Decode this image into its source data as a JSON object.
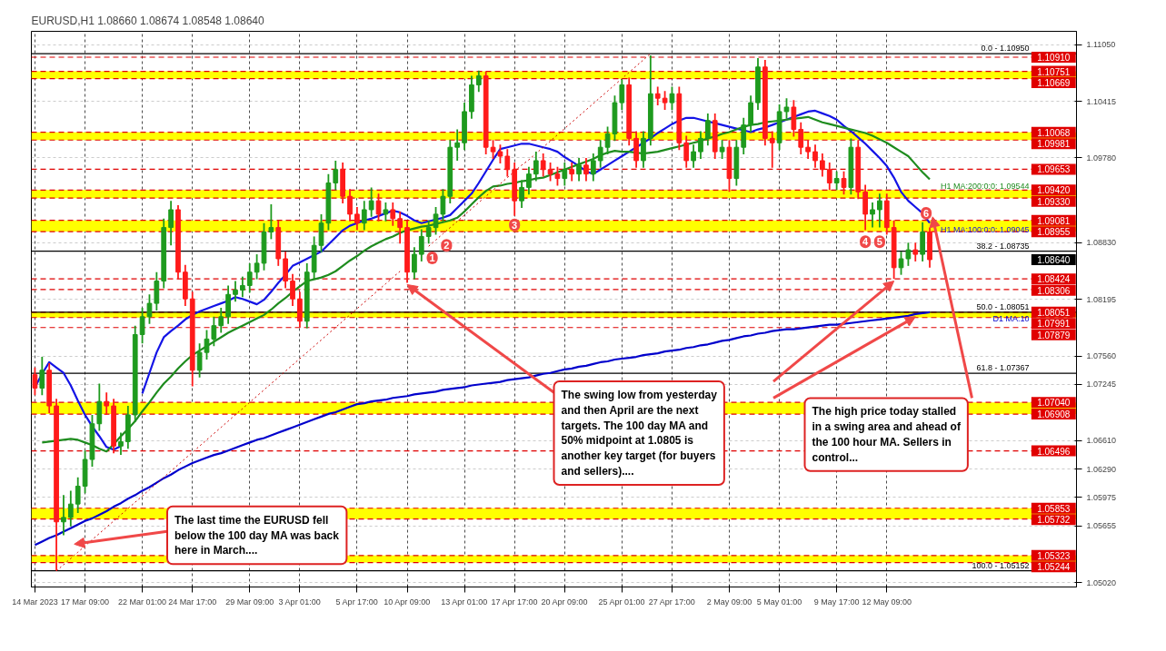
{
  "chart_data": {
    "type": "candlestick",
    "title": "EURUSD,H1  1.08660 1.08674 1.08548 1.08640",
    "categories": [
      "14 Mar 2023",
      null,
      null,
      null,
      null,
      null,
      null,
      "17 Mar 09:00",
      null,
      null,
      null,
      null,
      null,
      null,
      null,
      "22 Mar 01:00",
      null,
      null,
      null,
      null,
      null,
      null,
      "24 Mar 17:00",
      null,
      null,
      null,
      null,
      null,
      null,
      null,
      "29 Mar 09:00",
      null,
      null,
      null,
      null,
      null,
      null,
      "3 Apr 01:00",
      null,
      null,
      null,
      null,
      null,
      null,
      null,
      "5 Apr 17:00",
      null,
      null,
      null,
      null,
      null,
      null,
      "10 Apr 09:00",
      null,
      null,
      null,
      null,
      null,
      null,
      null,
      "13 Apr 01:00",
      null,
      null,
      null,
      null,
      null,
      null,
      "17 Apr 17:00",
      null,
      null,
      null,
      null,
      null,
      null,
      "20 Apr 09:00",
      null,
      null,
      null,
      null,
      null,
      null,
      null,
      "25 Apr 01:00",
      null,
      null,
      null,
      null,
      null,
      null,
      "27 Apr 17:00",
      null,
      null,
      null,
      null,
      null,
      null,
      null,
      "2 May 09:00",
      null,
      null,
      null,
      null,
      null,
      null,
      "5 May 01:00",
      null,
      null,
      null,
      null,
      null,
      null,
      null,
      "9 May 17:00",
      null,
      null,
      null,
      null,
      null,
      null,
      "12 May 09:00",
      null,
      null,
      null,
      null,
      null,
      null
    ],
    "ohlc": [
      [
        1.0735,
        1.0743,
        1.0712,
        1.072
      ],
      [
        1.072,
        1.0755,
        1.0712,
        1.074
      ],
      [
        1.074,
        1.0748,
        1.0692,
        1.07
      ],
      [
        1.07,
        1.0708,
        1.05152,
        1.057
      ],
      [
        1.057,
        1.06,
        1.0555,
        1.0575
      ],
      [
        1.0575,
        1.0605,
        1.0565,
        1.059
      ],
      [
        1.059,
        1.062,
        1.058,
        1.061
      ],
      [
        1.061,
        1.065,
        1.0602,
        1.064
      ],
      [
        1.064,
        1.069,
        1.0632,
        1.068
      ],
      [
        1.068,
        1.0725,
        1.0672,
        1.0705
      ],
      [
        1.0705,
        1.0715,
        1.069,
        1.07
      ],
      [
        1.07,
        1.0708,
        1.0647,
        1.0655
      ],
      [
        1.0655,
        1.067,
        1.0645,
        1.066
      ],
      [
        1.066,
        1.07,
        1.0652,
        1.069
      ],
      [
        1.069,
        1.079,
        1.0682,
        1.078
      ],
      [
        1.078,
        1.081,
        1.077,
        1.08
      ],
      [
        1.08,
        1.0825,
        1.0792,
        1.0815
      ],
      [
        1.0815,
        1.085,
        1.0807,
        1.084
      ],
      [
        1.084,
        1.091,
        1.0832,
        1.09
      ],
      [
        1.09,
        1.093,
        1.088,
        1.092
      ],
      [
        1.092,
        1.0925,
        1.0842,
        1.085
      ],
      [
        1.085,
        1.0858,
        1.0812,
        1.082
      ],
      [
        1.082,
        1.0828,
        1.0722,
        1.074
      ],
      [
        1.074,
        1.077,
        1.0732,
        1.076
      ],
      [
        1.076,
        1.0785,
        1.0752,
        1.0775
      ],
      [
        1.0775,
        1.08,
        1.0767,
        1.079
      ],
      [
        1.079,
        1.081,
        1.0782,
        1.08
      ],
      [
        1.08,
        1.0835,
        1.0792,
        1.0825
      ],
      [
        1.0825,
        1.084,
        1.0817,
        1.083
      ],
      [
        1.083,
        1.0845,
        1.0822,
        1.0835
      ],
      [
        1.0835,
        1.086,
        1.0827,
        1.085
      ],
      [
        1.085,
        1.087,
        1.0842,
        1.086
      ],
      [
        1.086,
        1.0905,
        1.0852,
        1.0895
      ],
      [
        1.0895,
        1.0926,
        1.0887,
        1.09
      ],
      [
        1.09,
        1.0908,
        1.0857,
        1.0865
      ],
      [
        1.0865,
        1.0873,
        1.0832,
        1.084
      ],
      [
        1.084,
        1.0848,
        1.0812,
        1.082
      ],
      [
        1.082,
        1.0828,
        1.0788,
        1.0795
      ],
      [
        1.0795,
        1.086,
        1.0787,
        1.085
      ],
      [
        1.085,
        1.089,
        1.0842,
        1.088
      ],
      [
        1.088,
        1.0915,
        1.0872,
        1.0905
      ],
      [
        1.0905,
        1.096,
        1.0897,
        1.095
      ],
      [
        1.095,
        1.0975,
        1.0942,
        1.0965
      ],
      [
        1.0965,
        1.0973,
        1.0927,
        1.0935
      ],
      [
        1.0935,
        1.0943,
        1.0907,
        1.0915
      ],
      [
        1.0915,
        1.0923,
        1.0897,
        1.0905
      ],
      [
        1.0905,
        1.093,
        1.0897,
        1.092
      ],
      [
        1.092,
        1.0945,
        1.0912,
        1.093
      ],
      [
        1.093,
        1.0938,
        1.0907,
        1.0915
      ],
      [
        1.0915,
        1.0928,
        1.0907,
        1.092
      ],
      [
        1.092,
        1.0928,
        1.0902,
        1.091
      ],
      [
        1.091,
        1.0918,
        1.0882,
        1.09
      ],
      [
        1.09,
        1.0908,
        1.0838,
        1.085
      ],
      [
        1.085,
        1.0878,
        1.0842,
        1.087
      ],
      [
        1.087,
        1.0898,
        1.0862,
        1.089
      ],
      [
        1.089,
        1.0908,
        1.0882,
        1.09
      ],
      [
        1.09,
        1.0923,
        1.0892,
        1.0915
      ],
      [
        1.0915,
        1.0943,
        1.0907,
        1.0935
      ],
      [
        1.0935,
        1.0998,
        1.0927,
        1.099
      ],
      [
        1.099,
        1.101,
        1.0975,
        1.0995
      ],
      [
        1.0995,
        1.104,
        1.0987,
        1.103
      ],
      [
        1.103,
        1.107,
        1.1022,
        1.106
      ],
      [
        1.106,
        1.1076,
        1.1052,
        1.107
      ],
      [
        1.107,
        1.1075,
        1.0982,
        1.099
      ],
      [
        1.099,
        1.0998,
        1.0977,
        1.0985
      ],
      [
        1.0985,
        1.0993,
        1.0972,
        1.098
      ],
      [
        1.098,
        1.0988,
        1.0957,
        1.0965
      ],
      [
        1.0965,
        1.0973,
        1.0913,
        1.093
      ],
      [
        1.093,
        1.0953,
        1.0922,
        1.0945
      ],
      [
        1.0945,
        1.0968,
        1.0937,
        1.096
      ],
      [
        1.096,
        1.0985,
        1.0952,
        1.0975
      ],
      [
        1.0975,
        1.0983,
        1.0957,
        1.0965
      ],
      [
        1.0965,
        1.0973,
        1.0952,
        1.096
      ],
      [
        1.096,
        1.0968,
        1.0947,
        1.0955
      ],
      [
        1.0955,
        1.0973,
        1.0947,
        1.0965
      ],
      [
        1.0965,
        1.0973,
        1.0952,
        1.096
      ],
      [
        1.096,
        1.0978,
        1.0952,
        1.097
      ],
      [
        1.097,
        1.0978,
        1.0952,
        1.096
      ],
      [
        1.096,
        1.0983,
        1.0952,
        1.0975
      ],
      [
        1.0975,
        1.0998,
        1.0967,
        1.099
      ],
      [
        1.099,
        1.1013,
        1.0982,
        1.1005
      ],
      [
        1.1005,
        1.1048,
        1.0997,
        1.104
      ],
      [
        1.104,
        1.1066,
        1.1032,
        1.106
      ],
      [
        1.106,
        1.1068,
        1.0992,
        1.1
      ],
      [
        1.1,
        1.1008,
        1.0967,
        1.0975
      ],
      [
        1.0975,
        1.1008,
        1.0967,
        1.1
      ],
      [
        1.1,
        1.1093,
        1.0992,
        1.105
      ],
      [
        1.105,
        1.1058,
        1.1037,
        1.1045
      ],
      [
        1.1045,
        1.1053,
        1.1032,
        1.104
      ],
      [
        1.104,
        1.1058,
        1.1032,
        1.105
      ],
      [
        1.105,
        1.1058,
        1.0987,
        1.0995
      ],
      [
        1.0995,
        1.1003,
        1.0967,
        1.0975
      ],
      [
        1.0975,
        1.0993,
        1.0967,
        1.0985
      ],
      [
        1.0985,
        1.1008,
        1.0977,
        1.1
      ],
      [
        1.1,
        1.1028,
        1.0992,
        1.102
      ],
      [
        1.102,
        1.1028,
        1.0977,
        1.0985
      ],
      [
        1.0985,
        1.0998,
        1.0977,
        1.099
      ],
      [
        1.099,
        1.0998,
        1.094,
        1.0955
      ],
      [
        1.0955,
        1.0998,
        1.0947,
        1.099
      ],
      [
        1.099,
        1.1023,
        1.0982,
        1.1015
      ],
      [
        1.1015,
        1.1048,
        1.1007,
        1.104
      ],
      [
        1.104,
        1.109,
        1.1032,
        1.108
      ],
      [
        1.108,
        1.1088,
        1.0992,
        1.1
      ],
      [
        1.1,
        1.1008,
        1.0967,
        1.0995
      ],
      [
        1.0995,
        1.1038,
        1.0987,
        1.103
      ],
      [
        1.103,
        1.1045,
        1.1022,
        1.1035
      ],
      [
        1.1035,
        1.1043,
        1.1002,
        1.101
      ],
      [
        1.101,
        1.1018,
        1.0982,
        1.099
      ],
      [
        1.099,
        1.0998,
        1.0977,
        1.0985
      ],
      [
        1.0985,
        1.0993,
        1.0967,
        1.0975
      ],
      [
        1.0975,
        1.0983,
        1.0957,
        1.0965
      ],
      [
        1.0965,
        1.0973,
        1.0942,
        1.095
      ],
      [
        1.095,
        1.0963,
        1.0942,
        1.0955
      ],
      [
        1.0955,
        1.0963,
        1.0937,
        1.0945
      ],
      [
        1.0945,
        1.1,
        1.0937,
        1.099
      ],
      [
        1.099,
        1.0998,
        1.0932,
        1.094
      ],
      [
        1.094,
        1.0948,
        1.0897,
        1.0915
      ],
      [
        1.0915,
        1.0928,
        1.09,
        1.092
      ],
      [
        1.092,
        1.0938,
        1.09,
        1.093
      ],
      [
        1.093,
        1.0938,
        1.0892,
        1.09
      ],
      [
        1.09,
        1.0908,
        1.08424,
        1.0855
      ],
      [
        1.0855,
        1.0873,
        1.0847,
        1.0865
      ],
      [
        1.0865,
        1.0883,
        1.0857,
        1.0875
      ],
      [
        1.0875,
        1.0883,
        1.0862,
        1.087
      ],
      [
        1.087,
        1.0906,
        1.0862,
        1.0895
      ],
      [
        1.0895,
        1.09,
        1.0855,
        1.0864
      ]
    ],
    "series": [
      {
        "type": "line",
        "name": "H1 MA:100:0:0: 1.09045",
        "color": "#1414e6",
        "values": [
          1.0721,
          1.0736,
          1.0749,
          1.0743,
          1.0737,
          1.0723,
          1.0706,
          1.069,
          1.0677,
          1.0666,
          1.0654,
          1.0651,
          1.0655,
          null,
          null,
          1.0714,
          1.0737,
          1.076,
          1.0777,
          1.0784,
          1.079,
          1.0797,
          1.0802,
          1.0806,
          1.0809,
          1.0812,
          1.0815,
          1.0818,
          1.0822,
          1.082,
          1.0817,
          1.0814,
          1.0819,
          1.0828,
          1.0838,
          1.0847,
          1.0857,
          1.0861,
          1.0865,
          1.0869,
          1.0873,
          1.0881,
          1.0889,
          1.0897,
          1.0902,
          1.0905,
          1.0908,
          1.091,
          1.0913,
          1.0916,
          1.0919,
          1.0917,
          1.0913,
          1.0908,
          1.0905,
          1.0907,
          1.0909,
          1.0911,
          1.0914,
          1.0922,
          1.093,
          1.0938,
          1.095,
          1.0963,
          1.0976,
          1.0988,
          1.099,
          1.0992,
          1.0994,
          1.0994,
          1.0992,
          1.099,
          1.0988,
          1.0985,
          1.0979,
          1.0974,
          1.0969,
          1.0963,
          1.096,
          1.0965,
          1.097,
          1.0975,
          1.098,
          1.0985,
          1.099,
          1.0995,
          1.1,
          1.1006,
          1.1011,
          1.1016,
          1.102,
          1.1023,
          1.1023,
          1.1021,
          1.1019,
          1.1017,
          1.1015,
          1.1013,
          1.1011,
          1.1009,
          1.1007,
          1.101,
          1.1012,
          1.1015,
          1.1018,
          1.1021,
          1.1024,
          1.1027,
          1.103,
          1.1031,
          1.1028,
          1.1025,
          1.1021,
          1.1014,
          1.1008,
          1.1001,
          1.0994,
          1.0986,
          1.0978,
          1.0969,
          1.0956,
          1.094,
          1.093,
          1.0923,
          1.0916,
          1.0905
        ]
      },
      {
        "type": "line",
        "name": "H1 MA:200:0:0: 1.09544",
        "color": "#1e8c1e",
        "values": [
          null,
          1.0659,
          1.066,
          1.0661,
          1.0662,
          1.0663,
          1.0662,
          1.0659,
          1.0656,
          1.0652,
          1.0649,
          1.0657,
          1.0666,
          1.0674,
          1.0683,
          1.0694,
          1.0704,
          1.0715,
          1.0725,
          1.0733,
          1.0742,
          1.075,
          1.0757,
          1.0762,
          1.0767,
          1.0772,
          1.0777,
          1.0782,
          1.0786,
          1.079,
          1.0794,
          1.0798,
          1.0802,
          1.0808,
          1.0815,
          1.0821,
          1.0828,
          1.0834,
          1.084,
          1.0842,
          1.0844,
          1.0847,
          1.0851,
          1.0857,
          1.0863,
          1.0868,
          1.0874,
          1.0879,
          1.0883,
          1.0887,
          1.089,
          1.0894,
          1.0897,
          1.0899,
          1.0901,
          1.0902,
          1.0904,
          1.0906,
          1.0908,
          1.0911,
          1.0918,
          1.0926,
          1.0934,
          1.0941,
          1.0946,
          1.0947,
          1.0949,
          1.095,
          1.0952,
          1.0953,
          1.0955,
          1.0956,
          1.0959,
          1.0962,
          1.0965,
          1.0968,
          1.0971,
          1.0974,
          1.0977,
          1.0981,
          1.0984,
          1.0986,
          1.0985,
          1.0985,
          1.0984,
          1.0983,
          1.0984,
          1.0985,
          1.0987,
          1.0989,
          1.0991,
          1.0993,
          1.0995,
          1.0997,
          1.1,
          1.1002,
          1.1005,
          1.1007,
          1.101,
          1.1013,
          1.1015,
          1.1016,
          1.1018,
          1.1019,
          1.102,
          1.1021,
          1.1022,
          1.1023,
          1.1024,
          1.1021,
          1.1018,
          1.1016,
          1.1014,
          1.1012,
          1.101,
          1.1008,
          1.1006,
          1.1003,
          1.0999,
          1.0995,
          1.099,
          1.0985,
          1.098,
          1.0971,
          1.0962,
          1.0954
        ]
      },
      {
        "type": "line",
        "name": "D1 MA:10",
        "color": "#0000cc",
        "values": [
          1.0544,
          1.0548,
          1.0552,
          1.0555,
          1.0559,
          1.0563,
          1.0567,
          1.0571,
          1.0574,
          1.0578,
          1.0582,
          1.0587,
          1.0591,
          1.0596,
          1.06,
          1.0605,
          1.0609,
          1.0614,
          1.0619,
          1.0623,
          1.0628,
          1.0632,
          1.0636,
          1.0639,
          1.0642,
          1.0645,
          1.0647,
          1.065,
          1.0653,
          1.0656,
          1.0659,
          1.0662,
          1.0664,
          1.0667,
          1.067,
          1.0673,
          1.0676,
          1.0679,
          1.0682,
          1.0685,
          1.0688,
          1.0691,
          1.0693,
          1.0696,
          1.0699,
          1.0702,
          1.0703,
          1.0705,
          1.0706,
          1.0707,
          1.0709,
          1.071,
          1.0711,
          1.0713,
          1.0714,
          1.0715,
          1.0716,
          1.0718,
          1.0719,
          1.072,
          1.0721,
          1.0723,
          1.0724,
          1.0725,
          1.0726,
          1.0727,
          1.0729,
          1.073,
          1.0731,
          1.0732,
          1.0734,
          1.0736,
          1.0737,
          1.0739,
          1.0741,
          1.0742,
          1.0744,
          1.0745,
          1.0747,
          1.0749,
          1.075,
          1.0752,
          1.0753,
          1.0754,
          1.0755,
          1.0757,
          1.0758,
          1.0759,
          1.0761,
          1.0762,
          1.0763,
          1.0765,
          1.0766,
          1.0768,
          1.0769,
          1.0771,
          1.0773,
          1.0774,
          1.0776,
          1.0778,
          1.0779,
          1.0781,
          1.0782,
          1.0784,
          1.0785,
          1.0786,
          1.0786,
          1.0787,
          1.0788,
          1.0789,
          1.079,
          1.0791,
          1.0791,
          1.0792,
          1.0793,
          1.0794,
          1.0795,
          1.0796,
          1.0797,
          1.0798,
          1.0799,
          1.08,
          1.0801,
          1.0803,
          1.0804,
          1.0805
        ]
      },
      {
        "type": "line",
        "color": "#cc0000",
        "line_style": "dotted",
        "values": [
          null,
          null,
          null,
          1.0515,
          1.0522,
          1.0529,
          1.0536,
          1.0543,
          1.055,
          1.0557,
          1.0564,
          1.0571,
          1.0578,
          1.0585,
          1.0592,
          1.0599,
          1.0606,
          1.0613,
          1.062,
          1.0627,
          1.0634,
          1.0641,
          1.0648,
          1.0655,
          1.0662,
          1.0669,
          1.0676,
          1.0683,
          1.069,
          1.0697,
          1.0704,
          1.0711,
          1.0718,
          1.0725,
          1.0732,
          1.0739,
          1.0746,
          1.0753,
          1.076,
          1.0767,
          1.0774,
          1.0781,
          1.0788,
          1.0795,
          1.0802,
          1.0809,
          1.0816,
          1.0823,
          1.083,
          1.0837,
          1.0844,
          1.0851,
          null,
          null,
          null,
          1.0879,
          1.0886,
          1.0893,
          1.09,
          1.0907,
          1.0914,
          1.0921,
          1.0928,
          1.0935,
          1.0942,
          1.0949,
          1.0956,
          1.0963,
          1.097,
          1.0976,
          1.0983,
          1.099,
          1.0997,
          1.1004,
          1.1011,
          1.1018,
          1.1025,
          1.1032,
          1.1039,
          1.1046,
          1.1053,
          1.106,
          1.1067,
          1.1074,
          1.1081,
          1.1088,
          1.1095,
          null,
          null,
          null,
          null,
          null,
          null,
          null,
          null,
          null,
          null,
          null,
          null,
          null,
          null,
          null,
          null,
          null,
          null,
          null,
          null,
          null,
          null,
          null,
          null,
          null,
          null,
          null,
          null,
          null,
          null,
          null,
          null,
          null,
          null,
          null,
          null,
          null,
          null,
          null
        ]
      }
    ],
    "ylim": [
      1.0497,
      1.112
    ],
    "yticks": [
      {
        "value": 1.1105,
        "label": "1.11050"
      },
      {
        "value": 1.10415,
        "label": "1.10415"
      },
      {
        "value": 1.0978,
        "label": "1.09780"
      },
      {
        "value": 1.0883,
        "label": "1.08830"
      },
      {
        "value": 1.08195,
        "label": "1.08195"
      },
      {
        "value": 1.0756,
        "label": "1.07560"
      },
      {
        "value": 1.07245,
        "label": "1.07245"
      },
      {
        "value": 1.0661,
        "label": "1.06610"
      },
      {
        "value": 1.0629,
        "label": "1.06290"
      },
      {
        "value": 1.05975,
        "label": "1.05975"
      },
      {
        "value": 1.05655,
        "label": "1.05655"
      },
      {
        "value": 1.0502,
        "label": "1.05020"
      }
    ],
    "grid": true,
    "ref_lines": [
      {
        "axis": "y",
        "value": 1.1091,
        "label": "1.10910",
        "color": "#e00000",
        "line_style": "dashed"
      },
      {
        "axis": "y",
        "value": 1.10751,
        "label": "1.10751",
        "color": "#e00000",
        "line_style": "dashed"
      },
      {
        "axis": "y",
        "value": 1.10669,
        "label": "1.10669",
        "color": "#e00000",
        "line_style": "dashed"
      },
      {
        "axis": "y",
        "value": 1.10068,
        "label": "1.10068",
        "color": "#e00000",
        "line_style": "dashed"
      },
      {
        "axis": "y",
        "value": 1.09981,
        "label": "1.09981",
        "color": "#e00000",
        "line_style": "dashed"
      },
      {
        "axis": "y",
        "value": 1.09653,
        "label": "1.09653",
        "color": "#e00000",
        "line_style": "dashed"
      },
      {
        "axis": "y",
        "value": 1.0942,
        "label": "1.09420",
        "color": "#e00000",
        "line_style": "dashed"
      },
      {
        "axis": "y",
        "value": 1.0933,
        "label": "1.09330",
        "color": "#e00000",
        "line_style": "dashed"
      },
      {
        "axis": "y",
        "value": 1.09081,
        "label": "1.09081",
        "color": "#e00000",
        "line_style": "dashed"
      },
      {
        "axis": "y",
        "value": 1.08955,
        "label": "1.08955",
        "color": "#e00000",
        "line_style": "dashed"
      },
      {
        "axis": "y",
        "value": 1.08424,
        "label": "1.08424",
        "color": "#e00000",
        "line_style": "dashed"
      },
      {
        "axis": "y",
        "value": 1.08306,
        "label": "1.08306",
        "color": "#e00000",
        "line_style": "dashed"
      },
      {
        "axis": "y",
        "value": 1.08051,
        "label": "1.08051",
        "color": "#e00000",
        "line_style": "dashed"
      },
      {
        "axis": "y",
        "value": 1.07991,
        "label": "1.07991",
        "color": "#e00000",
        "line_style": "dashed"
      },
      {
        "axis": "y",
        "value": 1.07879,
        "label": "1.07879",
        "color": "#e00000",
        "line_style": "dashed"
      },
      {
        "axis": "y",
        "value": 1.0704,
        "label": "1.07040",
        "color": "#e00000",
        "line_style": "dashed"
      },
      {
        "axis": "y",
        "value": 1.06908,
        "label": "1.06908",
        "color": "#e00000",
        "line_style": "dashed"
      },
      {
        "axis": "y",
        "value": 1.06496,
        "label": "1.06496",
        "color": "#e00000",
        "line_style": "dashed"
      },
      {
        "axis": "y",
        "value": 1.05853,
        "label": "1.05853",
        "color": "#e00000",
        "line_style": "dashed"
      },
      {
        "axis": "y",
        "value": 1.05732,
        "label": "1.05732",
        "color": "#e00000",
        "line_style": "dashed"
      },
      {
        "axis": "y",
        "value": 1.05323,
        "label": "1.05323",
        "color": "#e00000",
        "line_style": "dashed"
      },
      {
        "axis": "y",
        "value": 1.05244,
        "label": "1.05244",
        "color": "#e00000",
        "line_style": "dashed"
      },
      {
        "axis": "y",
        "value": 1.1095,
        "color": "#000000",
        "line_style": "solid"
      },
      {
        "axis": "y",
        "value": 1.08735,
        "color": "#000000",
        "line_style": "solid"
      },
      {
        "axis": "y",
        "value": 1.08051,
        "color": "#000000",
        "line_style": "solid"
      },
      {
        "axis": "y",
        "value": 1.07367,
        "color": "#000000",
        "line_style": "solid"
      },
      {
        "axis": "y",
        "value": 1.05152,
        "color": "#000000",
        "line_style": "solid"
      }
    ],
    "bands": [
      {
        "axis": "y",
        "from": 1.10669,
        "to": 1.10751,
        "color": "#ffff00"
      },
      {
        "axis": "y",
        "from": 1.09981,
        "to": 1.10068,
        "color": "#ffff00"
      },
      {
        "axis": "y",
        "from": 1.0933,
        "to": 1.0942,
        "color": "#ffff00"
      },
      {
        "axis": "y",
        "from": 1.08955,
        "to": 1.09081,
        "color": "#ffff00"
      },
      {
        "axis": "y",
        "from": 1.07991,
        "to": 1.08051,
        "color": "#ffff00"
      },
      {
        "axis": "y",
        "from": 1.06908,
        "to": 1.0704,
        "color": "#ffff00"
      },
      {
        "axis": "y",
        "from": 1.05732,
        "to": 1.05853,
        "color": "#ffff00"
      },
      {
        "axis": "y",
        "from": 1.05244,
        "to": 1.05323,
        "color": "#ffff00"
      }
    ],
    "annotations": [
      "The high price today stalled in a swing area and ahead of the 100 hour MA. Sellers in control...",
      "The swing low from yesterday and then April are the next targets. The 100 day MA and 50% midpoint at 1.0805 is another key target (for buyers and sellers)....",
      "The last time the EURUSD fell below the 100 day MA was back here in March....",
      {
        "text": "1",
        "y": 1.0866
      },
      {
        "text": "2",
        "y": 1.088
      },
      {
        "text": "3",
        "y": 1.0903
      },
      {
        "text": "4",
        "y": 1.0884
      },
      {
        "text": "5",
        "y": 1.0884
      },
      {
        "text": "6",
        "y": 1.0916
      },
      "1.08640",
      {
        "text": "0.0 - 1.10950",
        "y": 1.1095
      },
      {
        "text": "38.2 - 1.08735",
        "y": 1.08735
      },
      {
        "text": "50.0 - 1.08051",
        "y": 1.08051
      },
      {
        "text": "61.8 - 1.07367",
        "y": 1.07367
      },
      {
        "text": "100.0 - 1.05152",
        "y": 1.05152
      }
    ]
  }
}
